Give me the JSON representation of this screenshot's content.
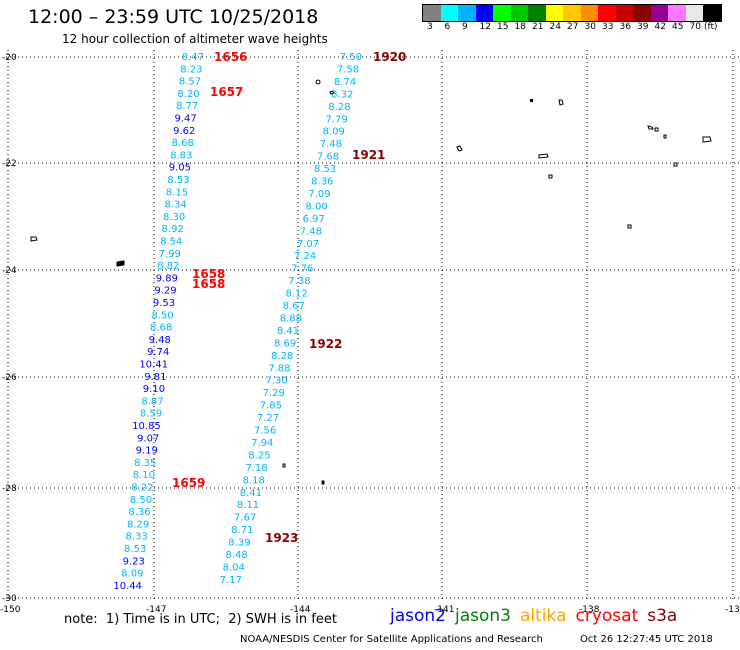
{
  "header": {
    "title": "12:00 – 23:59 UTC 10/25/2018",
    "subtitle": "12 hour collection of altimeter wave heights"
  },
  "scale": {
    "colors": [
      "#808080",
      "#00ffff",
      "#00b4ff",
      "#0000ff",
      "#00ff00",
      "#00c800",
      "#008000",
      "#ffff00",
      "#ffc800",
      "#ff8c00",
      "#ff0000",
      "#c80000",
      "#8b0000",
      "#960096",
      "#ff78ff",
      "#e8e8e8",
      "#000000"
    ],
    "labels": [
      "3",
      "6",
      "9",
      "12",
      "15",
      "18",
      "21",
      "24",
      "27",
      "30",
      "33",
      "36",
      "39",
      "42",
      "45",
      "70",
      "(ft)"
    ]
  },
  "axes": {
    "lat_labels": [
      "-20",
      "-22",
      "-24",
      "-26",
      "-28",
      "-30"
    ],
    "lon_labels": [
      "-150",
      "-147",
      "-144",
      "-141",
      "-138",
      "-13"
    ]
  },
  "tracks": {
    "track_a": [
      {
        "v": "8.47",
        "c": "#00b4ff"
      },
      {
        "v": "8.23",
        "c": "#00b4ff"
      },
      {
        "v": "8.57",
        "c": "#00b4ff"
      },
      {
        "v": "8.20",
        "c": "#00b4ff"
      },
      {
        "v": "8.77",
        "c": "#00b4ff"
      },
      {
        "v": "9.47",
        "c": "#0000ff"
      },
      {
        "v": "9.62",
        "c": "#0000ff"
      },
      {
        "v": "8.68",
        "c": "#00b4ff"
      },
      {
        "v": "8.83",
        "c": "#00b4ff"
      },
      {
        "v": "9.05",
        "c": "#0000ff"
      },
      {
        "v": "8.53",
        "c": "#00b4ff"
      },
      {
        "v": "8.15",
        "c": "#00b4ff"
      },
      {
        "v": "8.34",
        "c": "#00b4ff"
      },
      {
        "v": "8.30",
        "c": "#00b4ff"
      },
      {
        "v": "8.92",
        "c": "#00b4ff"
      },
      {
        "v": "8.54",
        "c": "#00b4ff"
      },
      {
        "v": "7.99",
        "c": "#00b4ff"
      },
      {
        "v": "8.82",
        "c": "#00b4ff"
      },
      {
        "v": "9.89",
        "c": "#0000ff"
      },
      {
        "v": "9.29",
        "c": "#0000ff"
      },
      {
        "v": "9.53",
        "c": "#0000ff"
      },
      {
        "v": "8.50",
        "c": "#00b4ff"
      },
      {
        "v": "8.68",
        "c": "#00b4ff"
      },
      {
        "v": "9.48",
        "c": "#0000ff"
      },
      {
        "v": "9.74",
        "c": "#0000ff"
      },
      {
        "v": "10.41",
        "c": "#0000ff"
      },
      {
        "v": "9.81",
        "c": "#0000ff"
      },
      {
        "v": "9.10",
        "c": "#0000ff"
      },
      {
        "v": "8.87",
        "c": "#00b4ff"
      },
      {
        "v": "8.59",
        "c": "#00b4ff"
      },
      {
        "v": "10.85",
        "c": "#0000ff"
      },
      {
        "v": "9.07",
        "c": "#0000ff"
      },
      {
        "v": "9.19",
        "c": "#0000ff"
      },
      {
        "v": "8.35",
        "c": "#00b4ff"
      },
      {
        "v": "8.10",
        "c": "#00b4ff"
      },
      {
        "v": "8.22",
        "c": "#00b4ff"
      },
      {
        "v": "8.50",
        "c": "#00b4ff"
      },
      {
        "v": "8.36",
        "c": "#00b4ff"
      },
      {
        "v": "8.29",
        "c": "#00b4ff"
      },
      {
        "v": "8.33",
        "c": "#00b4ff"
      },
      {
        "v": "8.53",
        "c": "#00b4ff"
      },
      {
        "v": "9.23",
        "c": "#0000ff"
      },
      {
        "v": "8.09",
        "c": "#00b4ff"
      },
      {
        "v": "10.44",
        "c": "#0000ff"
      }
    ],
    "track_b": [
      {
        "v": "7.50",
        "c": "#00b4ff"
      },
      {
        "v": "7.58",
        "c": "#00b4ff"
      },
      {
        "v": "8.74",
        "c": "#00b4ff"
      },
      {
        "v": "8.32",
        "c": "#00b4ff"
      },
      {
        "v": "8.28",
        "c": "#00b4ff"
      },
      {
        "v": "7.79",
        "c": "#00b4ff"
      },
      {
        "v": "8.09",
        "c": "#00b4ff"
      },
      {
        "v": "7.48",
        "c": "#00b4ff"
      },
      {
        "v": "7.68",
        "c": "#00b4ff"
      },
      {
        "v": "8.53",
        "c": "#00b4ff"
      },
      {
        "v": "8.36",
        "c": "#00b4ff"
      },
      {
        "v": "7.09",
        "c": "#00b4ff"
      },
      {
        "v": "8.00",
        "c": "#00b4ff"
      },
      {
        "v": "6.97",
        "c": "#00b4ff"
      },
      {
        "v": "7.48",
        "c": "#00b4ff"
      },
      {
        "v": "7.07",
        "c": "#00b4ff"
      },
      {
        "v": "7.24",
        "c": "#00b4ff"
      },
      {
        "v": "7.76",
        "c": "#00b4ff"
      },
      {
        "v": "7.38",
        "c": "#00b4ff"
      },
      {
        "v": "8.12",
        "c": "#00b4ff"
      },
      {
        "v": "8.67",
        "c": "#00b4ff"
      },
      {
        "v": "8.88",
        "c": "#00b4ff"
      },
      {
        "v": "8.41",
        "c": "#00b4ff"
      },
      {
        "v": "8.69",
        "c": "#00b4ff"
      },
      {
        "v": "8.28",
        "c": "#00b4ff"
      },
      {
        "v": "7.88",
        "c": "#00b4ff"
      },
      {
        "v": "7.30",
        "c": "#00b4ff"
      },
      {
        "v": "7.29",
        "c": "#00b4ff"
      },
      {
        "v": "7.85",
        "c": "#00b4ff"
      },
      {
        "v": "7.27",
        "c": "#00b4ff"
      },
      {
        "v": "7.56",
        "c": "#00b4ff"
      },
      {
        "v": "7.94",
        "c": "#00b4ff"
      },
      {
        "v": "8.25",
        "c": "#00b4ff"
      },
      {
        "v": "7.18",
        "c": "#00b4ff"
      },
      {
        "v": "8.18",
        "c": "#00b4ff"
      },
      {
        "v": "8.41",
        "c": "#00b4ff"
      },
      {
        "v": "8.11",
        "c": "#00b4ff"
      },
      {
        "v": "7.67",
        "c": "#00b4ff"
      },
      {
        "v": "8.71",
        "c": "#00b4ff"
      },
      {
        "v": "8.39",
        "c": "#00b4ff"
      },
      {
        "v": "8.48",
        "c": "#00b4ff"
      },
      {
        "v": "8.04",
        "c": "#00b4ff"
      },
      {
        "v": "7.17",
        "c": "#00b4ff"
      }
    ]
  },
  "times": [
    {
      "t": "1656",
      "c": "#ff0000"
    },
    {
      "t": "1657",
      "c": "#ff0000"
    },
    {
      "t": "1658",
      "c": "#ff0000"
    },
    {
      "t": "1658",
      "c": "#ff0000"
    },
    {
      "t": "1659",
      "c": "#ff0000"
    },
    {
      "t": "1920",
      "c": "#8b0000"
    },
    {
      "t": "1921",
      "c": "#8b0000"
    },
    {
      "t": "1922",
      "c": "#8b0000"
    },
    {
      "t": "1923",
      "c": "#8b0000"
    }
  ],
  "footer": {
    "note": "note:  1) Time is in UTC;  2) SWH is in feet",
    "missions": [
      {
        "name": "jason2",
        "color": "#0000ff"
      },
      {
        "name": "jason3",
        "color": "#008000"
      },
      {
        "name": "altika",
        "color": "#ffa500"
      },
      {
        "name": "cryosat",
        "color": "#ff0000"
      },
      {
        "name": "s3a",
        "color": "#8b0000"
      }
    ],
    "credit": "NOAA/NESDIS Center for Satellite Applications and Research",
    "timestamp": "Oct 26 12:27:45 UTC 2018"
  }
}
